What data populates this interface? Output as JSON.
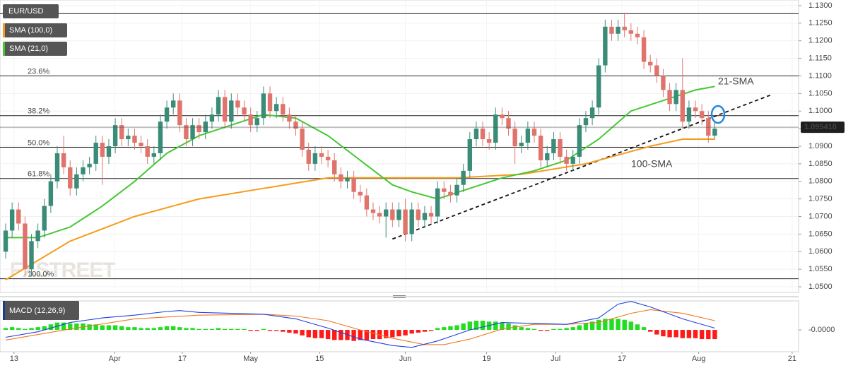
{
  "chart_data": {
    "type": "candlestick",
    "symbol": "EUR/USD",
    "watermark": "FXSTREET",
    "xlim": [
      -0.88,
      123
    ],
    "xticks": [
      {
        "value": 1.3,
        "label": "13"
      },
      {
        "value": 16.9,
        "label": "Apr"
      },
      {
        "value": 27.4,
        "label": "17"
      },
      {
        "value": 38,
        "label": "May"
      },
      {
        "value": 48.7,
        "label": "15"
      },
      {
        "value": 62,
        "label": "Jun"
      },
      {
        "value": 74.6,
        "label": "19"
      },
      {
        "value": 85.3,
        "label": "Jul"
      },
      {
        "value": 95.6,
        "label": "17"
      },
      {
        "value": 107.5,
        "label": "Aug"
      },
      {
        "value": 122,
        "label": "21"
      }
    ],
    "ylim": [
      1.0484,
      1.1316
    ],
    "yticks": [
      {
        "value": 1.13,
        "label": "1.1300"
      },
      {
        "value": 1.125,
        "label": "1.1250"
      },
      {
        "value": 1.12,
        "label": "1.1200"
      },
      {
        "value": 1.115,
        "label": "1.1150"
      },
      {
        "value": 1.11,
        "label": "1.1100"
      },
      {
        "value": 1.105,
        "label": "1.1050"
      },
      {
        "value": 1.1,
        "label": "1.1000"
      },
      {
        "value": 1.095,
        "label": "1.0950"
      },
      {
        "value": 1.09,
        "label": "1.0900"
      },
      {
        "value": 1.085,
        "label": "1.0850"
      },
      {
        "value": 1.08,
        "label": "1.0800"
      },
      {
        "value": 1.075,
        "label": "1.0750"
      },
      {
        "value": 1.07,
        "label": "1.0700"
      },
      {
        "value": 1.065,
        "label": "1.0650"
      },
      {
        "value": 1.06,
        "label": "1.0600"
      },
      {
        "value": 1.055,
        "label": "1.0550"
      },
      {
        "value": 1.05,
        "label": "1.0500"
      }
    ],
    "up_color": "#3a8c78",
    "down_color": "#e0746c",
    "open": [
      1.06,
      1.066,
      1.072,
      1.068,
      1.055,
      1.063,
      1.066,
      1.073,
      1.08,
      1.088,
      1.084,
      1.078,
      1.082,
      1.084,
      1.085,
      1.091,
      1.087,
      1.09,
      1.096,
      1.092,
      1.093,
      1.091,
      1.09,
      1.087,
      1.088,
      1.097,
      1.101,
      1.103,
      1.096,
      1.092,
      1.096,
      1.094,
      1.097,
      1.099,
      1.104,
      1.097,
      1.103,
      1.101,
      1.099,
      1.096,
      1.098,
      1.105,
      1.1,
      1.102,
      1.099,
      1.097,
      1.095,
      1.089,
      1.085,
      1.088,
      1.087,
      1.086,
      1.082,
      1.08,
      1.081,
      1.077,
      1.076,
      1.072,
      1.071,
      1.07,
      1.072,
      1.069,
      1.072,
      1.065,
      1.072,
      1.069,
      1.071,
      1.07,
      1.078,
      1.077,
      1.076,
      1.079,
      1.083,
      1.092,
      1.095,
      1.092,
      1.091,
      1.099,
      1.098,
      1.095,
      1.09,
      1.091,
      1.095,
      1.093,
      1.086,
      1.088,
      1.092,
      1.087,
      1.085,
      1.087,
      1.096,
      1.098,
      1.101,
      1.113,
      1.124,
      1.122,
      1.124,
      1.123,
      1.122,
      1.121,
      1.114,
      1.113,
      1.11,
      1.106,
      1.102,
      1.106,
      1.097,
      1.101,
      1.1,
      1.098,
      1.093
    ],
    "high": [
      1.068,
      1.074,
      1.074,
      1.07,
      1.065,
      1.068,
      1.075,
      1.082,
      1.09,
      1.093,
      1.086,
      1.084,
      1.086,
      1.087,
      1.093,
      1.093,
      1.092,
      1.098,
      1.098,
      1.095,
      1.095,
      1.093,
      1.092,
      1.09,
      1.099,
      1.103,
      1.105,
      1.105,
      1.098,
      1.098,
      1.098,
      1.099,
      1.101,
      1.106,
      1.106,
      1.105,
      1.105,
      1.103,
      1.101,
      1.1,
      1.107,
      1.107,
      1.104,
      1.104,
      1.101,
      1.099,
      1.097,
      1.091,
      1.09,
      1.09,
      1.089,
      1.088,
      1.084,
      1.083,
      1.083,
      1.079,
      1.078,
      1.074,
      1.073,
      1.074,
      1.074,
      1.074,
      1.075,
      1.074,
      1.074,
      1.073,
      1.073,
      1.08,
      1.08,
      1.079,
      1.081,
      1.085,
      1.094,
      1.097,
      1.097,
      1.094,
      1.101,
      1.101,
      1.1,
      1.097,
      1.093,
      1.097,
      1.097,
      1.095,
      1.09,
      1.094,
      1.094,
      1.089,
      1.089,
      1.098,
      1.1,
      1.103,
      1.115,
      1.126,
      1.126,
      1.126,
      1.128,
      1.125,
      1.124,
      1.123,
      1.116,
      1.115,
      1.112,
      1.108,
      1.108,
      1.115,
      1.103,
      1.103,
      1.102,
      1.1,
      1.097
    ],
    "low": [
      1.058,
      1.064,
      1.066,
      1.053,
      1.053,
      1.061,
      1.064,
      1.071,
      1.078,
      1.082,
      1.076,
      1.076,
      1.08,
      1.082,
      1.083,
      1.079,
      1.085,
      1.088,
      1.09,
      1.09,
      1.089,
      1.088,
      1.085,
      1.085,
      1.086,
      1.095,
      1.099,
      1.094,
      1.09,
      1.09,
      1.092,
      1.092,
      1.095,
      1.097,
      1.095,
      1.095,
      1.099,
      1.097,
      1.094,
      1.094,
      1.096,
      1.098,
      1.098,
      1.097,
      1.095,
      1.093,
      1.087,
      1.083,
      1.083,
      1.085,
      1.084,
      1.08,
      1.078,
      1.078,
      1.075,
      1.074,
      1.07,
      1.069,
      1.068,
      1.064,
      1.067,
      1.067,
      1.063,
      1.063,
      1.067,
      1.067,
      1.068,
      1.068,
      1.075,
      1.074,
      1.074,
      1.077,
      1.081,
      1.09,
      1.09,
      1.089,
      1.089,
      1.096,
      1.093,
      1.085,
      1.088,
      1.089,
      1.091,
      1.084,
      1.084,
      1.086,
      1.085,
      1.083,
      1.083,
      1.085,
      1.094,
      1.096,
      1.099,
      1.111,
      1.12,
      1.12,
      1.121,
      1.12,
      1.119,
      1.112,
      1.111,
      1.108,
      1.104,
      1.1,
      1.1,
      1.095,
      1.095,
      1.098,
      1.096,
      1.091,
      1.092
    ],
    "close": [
      1.066,
      1.072,
      1.068,
      1.055,
      1.063,
      1.066,
      1.073,
      1.08,
      1.088,
      1.084,
      1.078,
      1.082,
      1.084,
      1.085,
      1.091,
      1.087,
      1.09,
      1.096,
      1.092,
      1.093,
      1.091,
      1.09,
      1.087,
      1.088,
      1.097,
      1.101,
      1.103,
      1.096,
      1.092,
      1.096,
      1.094,
      1.097,
      1.099,
      1.104,
      1.097,
      1.103,
      1.101,
      1.099,
      1.096,
      1.098,
      1.105,
      1.1,
      1.102,
      1.099,
      1.097,
      1.095,
      1.089,
      1.085,
      1.088,
      1.087,
      1.086,
      1.082,
      1.08,
      1.081,
      1.077,
      1.076,
      1.072,
      1.071,
      1.07,
      1.072,
      1.069,
      1.072,
      1.065,
      1.072,
      1.069,
      1.071,
      1.07,
      1.078,
      1.077,
      1.076,
      1.079,
      1.083,
      1.092,
      1.095,
      1.092,
      1.091,
      1.099,
      1.098,
      1.095,
      1.09,
      1.091,
      1.095,
      1.093,
      1.086,
      1.088,
      1.092,
      1.087,
      1.085,
      1.087,
      1.096,
      1.098,
      1.101,
      1.113,
      1.124,
      1.122,
      1.124,
      1.123,
      1.122,
      1.121,
      1.114,
      1.113,
      1.11,
      1.106,
      1.102,
      1.106,
      1.097,
      1.101,
      1.1,
      1.098,
      1.093,
      1.095
    ],
    "overlays": [
      {
        "name": "SMA (100,0)",
        "label": "100-SMA",
        "color": "#f59c1a",
        "x": [
          0,
          10,
          20,
          30,
          40,
          50,
          60,
          70,
          80,
          90,
          100,
          105,
          110
        ],
        "values": [
          1.052,
          1.063,
          1.07,
          1.075,
          1.078,
          1.081,
          1.081,
          1.081,
          1.082,
          1.085,
          1.09,
          1.092,
          1.092
        ]
      },
      {
        "name": "SMA (21,0)",
        "label": "21-SMA",
        "color": "#45c832",
        "x": [
          0,
          5,
          10,
          15,
          20,
          25,
          30,
          35,
          40,
          45,
          50,
          55,
          60,
          63,
          67,
          72,
          77,
          82,
          87,
          92,
          97,
          102,
          107,
          110
        ],
        "values": [
          1.064,
          1.064,
          1.067,
          1.073,
          1.08,
          1.088,
          1.093,
          1.096,
          1.099,
          1.098,
          1.093,
          1.086,
          1.079,
          1.077,
          1.075,
          1.078,
          1.081,
          1.083,
          1.086,
          1.092,
          1.1,
          1.103,
          1.106,
          1.107
        ]
      }
    ],
    "trendline": {
      "x": [
        60,
        119
      ],
      "values": [
        1.0636,
        1.1048
      ]
    },
    "levels": [
      1.1277,
      {
        "value": 1.11,
        "label": "23.6%"
      },
      {
        "value": 1.0987,
        "label": "38.2%"
      },
      {
        "value": 1.0897,
        "label": "50.0%"
      },
      {
        "value": 1.0808,
        "label": "61.8%"
      },
      {
        "value": 1.0523,
        "label": "100.0%"
      }
    ],
    "last_price": {
      "value": 1.09541,
      "label": "1.095410"
    },
    "macd": {
      "name": "MACD (12,26,9)",
      "ylim": [
        -0.0023,
        0.003
      ],
      "yticks": [
        {
          "value": 0,
          "label": "-0.0000"
        }
      ],
      "up_color": "#22dd22",
      "down_color": "#ff1a1a",
      "histogram": [
        0.0002,
        0.0003,
        0.0002,
        0.0001,
        0.0002,
        0.0003,
        0.0004,
        0.0006,
        0.0008,
        0.0008,
        0.0007,
        0.0007,
        0.0007,
        0.0006,
        0.0006,
        0.0005,
        0.0005,
        0.0005,
        0.0004,
        0.0003,
        0.0003,
        0.0002,
        0.0002,
        0.0002,
        0.0003,
        0.0004,
        0.0004,
        0.0003,
        0.0002,
        0.0002,
        0.0001,
        0.0001,
        0.0001,
        0.0002,
        0.0001,
        0.0001,
        0.0001,
        0.0001,
        -0.0001,
        -0.0001,
        0.0001,
        -0.0001,
        -0.0001,
        -0.0002,
        -0.0003,
        -0.0004,
        -0.0006,
        -0.0008,
        -0.0009,
        -0.0009,
        -0.001,
        -0.0011,
        -0.0011,
        -0.0011,
        -0.0012,
        -0.0011,
        -0.0011,
        -0.001,
        -0.001,
        -0.0009,
        -0.0008,
        -0.0007,
        -0.0006,
        -0.0004,
        -0.0003,
        -0.0002,
        -0.0001,
        0.0002,
        0.0003,
        0.0004,
        0.0005,
        0.0007,
        0.0009,
        0.001,
        0.001,
        0.0009,
        0.0009,
        0.0008,
        0.0007,
        0.0005,
        0.0003,
        0.0002,
        0.0001,
        -0.0001,
        -0.0001,
        0.0001,
        0.0001,
        0.0002,
        0.0003,
        0.0005,
        0.0007,
        0.0009,
        0.0011,
        0.0012,
        0.0012,
        0.0012,
        0.0011,
        0.0009,
        0.0006,
        0.0003,
        -0.0002,
        -0.0005,
        -0.0007,
        -0.0008,
        -0.0008,
        -0.0009,
        -0.0009,
        -0.0009,
        -0.001,
        -0.001,
        -0.001
      ],
      "macd_line": {
        "color": "#2040e0",
        "x": [
          0,
          5,
          10,
          15,
          20,
          25,
          27,
          30,
          35,
          40,
          45,
          50,
          55,
          60,
          63,
          67,
          72,
          77,
          82,
          87,
          92,
          95,
          97,
          100,
          105,
          110
        ],
        "values": [
          -0.0008,
          -0.0002,
          0.0008,
          0.0013,
          0.0016,
          0.002,
          0.0021,
          0.0019,
          0.0018,
          0.0017,
          0.0012,
          0.0002,
          -0.001,
          -0.0017,
          -0.0019,
          -0.0012,
          0.0,
          0.0008,
          0.0007,
          0.0006,
          0.0013,
          0.0028,
          0.0031,
          0.0025,
          0.0012,
          0.0002
        ]
      },
      "signal_line": {
        "color": "#f07820",
        "x": [
          0,
          10,
          20,
          30,
          40,
          45,
          50,
          55,
          60,
          65,
          68,
          72,
          77,
          82,
          87,
          92,
          97,
          100,
          105,
          110
        ],
        "values": [
          -0.0011,
          0.0001,
          0.0012,
          0.0016,
          0.0017,
          0.0015,
          0.001,
          0.0,
          -0.0009,
          -0.0016,
          -0.0016,
          -0.001,
          0.0001,
          0.0006,
          0.0006,
          0.0008,
          0.0018,
          0.0022,
          0.0018,
          0.001
        ]
      }
    }
  }
}
